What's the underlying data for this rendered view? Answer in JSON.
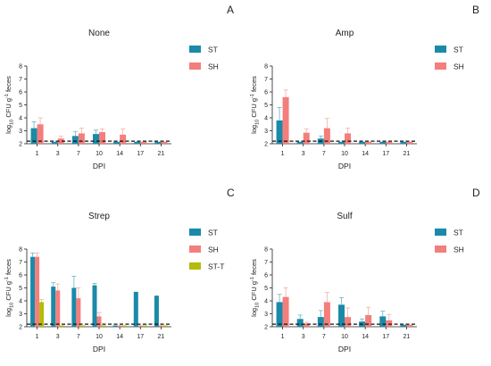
{
  "chart_data": [
    {
      "type": "bar",
      "panel_letter": "A",
      "title": "None",
      "xlabel": "DPI",
      "ylabel": "log10 CFU g-1 feces",
      "categories": [
        "1",
        "3",
        "7",
        "10",
        "14",
        "17",
        "21"
      ],
      "ylim": [
        2,
        8
      ],
      "yticks": [
        2,
        3,
        4,
        5,
        6,
        7,
        8
      ],
      "threshold": 2.2,
      "legend_position": "right",
      "series": [
        {
          "name": "ST",
          "color": "#1a8aa8",
          "values": [
            3.2,
            2.15,
            2.6,
            2.75,
            2.15,
            2.15,
            2.15
          ],
          "errors": [
            0.5,
            0.05,
            0.35,
            0.3,
            0.05,
            0.05,
            0.05
          ]
        },
        {
          "name": "SH",
          "color": "#f47e7b",
          "values": [
            3.5,
            2.4,
            2.8,
            2.9,
            2.7,
            2.15,
            2.15
          ],
          "errors": [
            0.5,
            0.2,
            0.4,
            0.25,
            0.45,
            0.05,
            0.05
          ]
        }
      ]
    },
    {
      "type": "bar",
      "panel_letter": "B",
      "title": "Amp",
      "xlabel": "DPI",
      "ylabel": "log10 CFU g-1 feces",
      "categories": [
        "1",
        "3",
        "7",
        "10",
        "14",
        "17",
        "21"
      ],
      "ylim": [
        2,
        8
      ],
      "yticks": [
        2,
        3,
        4,
        5,
        6,
        7,
        8
      ],
      "threshold": 2.2,
      "legend_position": "right",
      "series": [
        {
          "name": "ST",
          "color": "#1a8aa8",
          "values": [
            3.8,
            2.15,
            2.4,
            2.15,
            2.15,
            2.15,
            2.15
          ],
          "errors": [
            1.0,
            0.05,
            0.2,
            0.05,
            0.05,
            0.05,
            0.05
          ]
        },
        {
          "name": "SH",
          "color": "#f47e7b",
          "values": [
            5.6,
            2.85,
            3.2,
            2.8,
            2.15,
            2.15,
            2.15
          ],
          "errors": [
            0.55,
            0.3,
            0.75,
            0.4,
            0.05,
            0.05,
            0.05
          ]
        }
      ]
    },
    {
      "type": "bar",
      "panel_letter": "C",
      "title": "Strep",
      "xlabel": "DPI",
      "ylabel": "log10 CFU g-1 feces",
      "categories": [
        "1",
        "3",
        "7",
        "10",
        "14",
        "17",
        "21"
      ],
      "ylim": [
        2,
        8
      ],
      "yticks": [
        2,
        3,
        4,
        5,
        6,
        7,
        8
      ],
      "threshold": 2.2,
      "legend_position": "right",
      "series": [
        {
          "name": "ST",
          "color": "#1a8aa8",
          "values": [
            7.4,
            5.1,
            5.0,
            5.2,
            2.1,
            4.7,
            4.4
          ],
          "errors": [
            0.3,
            0.3,
            0.9,
            0.15,
            0.05,
            0.05,
            0.05
          ]
        },
        {
          "name": "SH",
          "color": "#f47e7b",
          "values": [
            7.4,
            4.8,
            4.2,
            2.8,
            2.1,
            2.1,
            2.1
          ],
          "errors": [
            0.3,
            0.5,
            0.8,
            0.3,
            0.05,
            0.05,
            0.05
          ]
        },
        {
          "name": "ST-T",
          "color": "#b5bb0a",
          "values": [
            3.9,
            2.1,
            2.1,
            2.1,
            2.1,
            2.1,
            2.1
          ],
          "errors": [
            0.2,
            0.05,
            0.05,
            0.05,
            0.05,
            0.05,
            0.05
          ]
        }
      ]
    },
    {
      "type": "bar",
      "panel_letter": "D",
      "title": "Sulf",
      "xlabel": "DPI",
      "ylabel": "log10 CFU g-1 feces",
      "categories": [
        "1",
        "3",
        "7",
        "10",
        "14",
        "17",
        "21"
      ],
      "ylim": [
        2,
        8
      ],
      "yticks": [
        2,
        3,
        4,
        5,
        6,
        7,
        8
      ],
      "threshold": 2.2,
      "legend_position": "right",
      "series": [
        {
          "name": "ST",
          "color": "#1a8aa8",
          "values": [
            3.9,
            2.6,
            2.75,
            3.7,
            2.4,
            2.8,
            2.15
          ],
          "errors": [
            0.6,
            0.3,
            0.5,
            0.55,
            0.2,
            0.4,
            0.05
          ]
        },
        {
          "name": "SH",
          "color": "#f47e7b",
          "values": [
            4.3,
            2.25,
            3.9,
            2.75,
            2.9,
            2.5,
            2.15
          ],
          "errors": [
            0.7,
            0.1,
            0.75,
            0.7,
            0.6,
            0.45,
            0.05
          ]
        }
      ]
    }
  ]
}
